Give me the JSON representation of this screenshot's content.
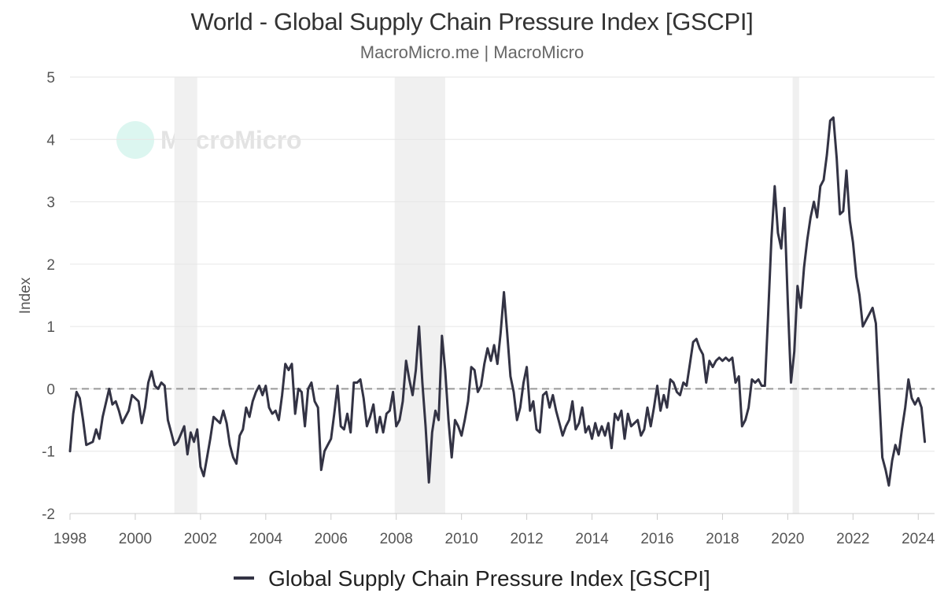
{
  "header": {
    "title": "World - Global Supply Chain Pressure Index [GSCPI]",
    "subtitle": "MacroMicro.me | MacroMicro"
  },
  "watermark": {
    "text": "MacroMicro"
  },
  "legend": {
    "label": "Global Supply Chain Pressure Index [GSCPI]"
  },
  "colors": {
    "line": "#333344",
    "grid": "#e6e6e6",
    "recession": "#f0f0f0",
    "zero_line": "#999999",
    "watermark": "#bfeee4"
  },
  "chart_data": {
    "type": "line",
    "title": "World - Global Supply Chain Pressure Index [GSCPI]",
    "ylabel": "Index",
    "xlabel": "",
    "xlim": [
      1998.0,
      2024.5
    ],
    "ylim": [
      -2,
      5
    ],
    "yticks": [
      -2,
      -1,
      0,
      1,
      2,
      3,
      4,
      5
    ],
    "xticks": [
      1998,
      2000,
      2002,
      2004,
      2006,
      2008,
      2010,
      2012,
      2014,
      2016,
      2018,
      2020,
      2022,
      2024
    ],
    "reference_line": {
      "y": 0,
      "style": "dashed"
    },
    "recession_bands": [
      [
        2001.2,
        2001.9
      ],
      [
        2007.95,
        2009.5
      ],
      [
        2020.15,
        2020.35
      ]
    ],
    "series": [
      {
        "name": "Global Supply Chain Pressure Index [GSCPI]",
        "points": [
          [
            1998.0,
            -1.0
          ],
          [
            1998.1,
            -0.4
          ],
          [
            1998.2,
            -0.05
          ],
          [
            1998.3,
            -0.15
          ],
          [
            1998.4,
            -0.5
          ],
          [
            1998.5,
            -0.9
          ],
          [
            1998.7,
            -0.85
          ],
          [
            1998.8,
            -0.65
          ],
          [
            1998.9,
            -0.8
          ],
          [
            1999.0,
            -0.45
          ],
          [
            1999.2,
            0.0
          ],
          [
            1999.3,
            -0.25
          ],
          [
            1999.4,
            -0.2
          ],
          [
            1999.5,
            -0.35
          ],
          [
            1999.6,
            -0.55
          ],
          [
            1999.8,
            -0.35
          ],
          [
            1999.9,
            -0.1
          ],
          [
            2000.1,
            -0.2
          ],
          [
            2000.2,
            -0.55
          ],
          [
            2000.3,
            -0.3
          ],
          [
            2000.4,
            0.1
          ],
          [
            2000.5,
            0.28
          ],
          [
            2000.6,
            0.05
          ],
          [
            2000.7,
            0.0
          ],
          [
            2000.8,
            0.1
          ],
          [
            2000.9,
            0.05
          ],
          [
            2001.0,
            -0.5
          ],
          [
            2001.1,
            -0.7
          ],
          [
            2001.2,
            -0.9
          ],
          [
            2001.3,
            -0.85
          ],
          [
            2001.5,
            -0.6
          ],
          [
            2001.6,
            -1.05
          ],
          [
            2001.7,
            -0.7
          ],
          [
            2001.8,
            -0.85
          ],
          [
            2001.9,
            -0.65
          ],
          [
            2002.0,
            -1.25
          ],
          [
            2002.1,
            -1.4
          ],
          [
            2002.2,
            -1.1
          ],
          [
            2002.3,
            -0.8
          ],
          [
            2002.4,
            -0.45
          ],
          [
            2002.5,
            -0.5
          ],
          [
            2002.6,
            -0.55
          ],
          [
            2002.7,
            -0.35
          ],
          [
            2002.8,
            -0.55
          ],
          [
            2002.9,
            -0.9
          ],
          [
            2003.0,
            -1.1
          ],
          [
            2003.1,
            -1.2
          ],
          [
            2003.2,
            -0.75
          ],
          [
            2003.3,
            -0.65
          ],
          [
            2003.4,
            -0.3
          ],
          [
            2003.5,
            -0.45
          ],
          [
            2003.6,
            -0.2
          ],
          [
            2003.7,
            -0.05
          ],
          [
            2003.8,
            0.05
          ],
          [
            2003.9,
            -0.1
          ],
          [
            2004.0,
            0.05
          ],
          [
            2004.1,
            -0.3
          ],
          [
            2004.2,
            -0.4
          ],
          [
            2004.3,
            -0.35
          ],
          [
            2004.4,
            -0.5
          ],
          [
            2004.5,
            -0.1
          ],
          [
            2004.6,
            0.4
          ],
          [
            2004.7,
            0.3
          ],
          [
            2004.8,
            0.4
          ],
          [
            2004.9,
            -0.4
          ],
          [
            2005.0,
            0.0
          ],
          [
            2005.1,
            -0.05
          ],
          [
            2005.2,
            -0.6
          ],
          [
            2005.3,
            0.0
          ],
          [
            2005.4,
            0.1
          ],
          [
            2005.5,
            -0.2
          ],
          [
            2005.6,
            -0.3
          ],
          [
            2005.7,
            -1.3
          ],
          [
            2005.8,
            -1.0
          ],
          [
            2005.9,
            -0.9
          ],
          [
            2006.0,
            -0.8
          ],
          [
            2006.1,
            -0.4
          ],
          [
            2006.2,
            0.05
          ],
          [
            2006.3,
            -0.6
          ],
          [
            2006.4,
            -0.65
          ],
          [
            2006.5,
            -0.4
          ],
          [
            2006.6,
            -0.7
          ],
          [
            2006.7,
            0.1
          ],
          [
            2006.8,
            0.1
          ],
          [
            2006.9,
            0.15
          ],
          [
            2007.0,
            -0.15
          ],
          [
            2007.1,
            -0.6
          ],
          [
            2007.2,
            -0.45
          ],
          [
            2007.3,
            -0.25
          ],
          [
            2007.4,
            -0.7
          ],
          [
            2007.5,
            -0.45
          ],
          [
            2007.6,
            -0.7
          ],
          [
            2007.7,
            -0.4
          ],
          [
            2007.8,
            -0.35
          ],
          [
            2007.9,
            -0.05
          ],
          [
            2008.0,
            -0.6
          ],
          [
            2008.1,
            -0.5
          ],
          [
            2008.2,
            -0.2
          ],
          [
            2008.3,
            0.45
          ],
          [
            2008.4,
            0.15
          ],
          [
            2008.5,
            -0.1
          ],
          [
            2008.6,
            0.3
          ],
          [
            2008.7,
            1.0
          ],
          [
            2008.8,
            0.1
          ],
          [
            2008.9,
            -0.6
          ],
          [
            2009.0,
            -1.5
          ],
          [
            2009.1,
            -0.7
          ],
          [
            2009.2,
            -0.35
          ],
          [
            2009.3,
            -0.5
          ],
          [
            2009.4,
            0.85
          ],
          [
            2009.5,
            0.3
          ],
          [
            2009.6,
            -0.5
          ],
          [
            2009.7,
            -1.1
          ],
          [
            2009.8,
            -0.5
          ],
          [
            2009.9,
            -0.6
          ],
          [
            2010.0,
            -0.75
          ],
          [
            2010.1,
            -0.5
          ],
          [
            2010.2,
            -0.2
          ],
          [
            2010.3,
            0.35
          ],
          [
            2010.4,
            0.3
          ],
          [
            2010.5,
            -0.05
          ],
          [
            2010.6,
            0.05
          ],
          [
            2010.7,
            0.4
          ],
          [
            2010.8,
            0.65
          ],
          [
            2010.9,
            0.45
          ],
          [
            2011.0,
            0.7
          ],
          [
            2011.1,
            0.4
          ],
          [
            2011.2,
            0.9
          ],
          [
            2011.3,
            1.55
          ],
          [
            2011.4,
            0.9
          ],
          [
            2011.5,
            0.2
          ],
          [
            2011.6,
            -0.05
          ],
          [
            2011.7,
            -0.5
          ],
          [
            2011.8,
            -0.3
          ],
          [
            2011.9,
            0.1
          ],
          [
            2012.0,
            0.35
          ],
          [
            2012.1,
            -0.35
          ],
          [
            2012.2,
            -0.2
          ],
          [
            2012.3,
            -0.65
          ],
          [
            2012.4,
            -0.7
          ],
          [
            2012.5,
            -0.1
          ],
          [
            2012.6,
            -0.05
          ],
          [
            2012.7,
            -0.3
          ],
          [
            2012.8,
            -0.1
          ],
          [
            2012.9,
            -0.35
          ],
          [
            2013.0,
            -0.55
          ],
          [
            2013.1,
            -0.75
          ],
          [
            2013.2,
            -0.6
          ],
          [
            2013.3,
            -0.5
          ],
          [
            2013.4,
            -0.2
          ],
          [
            2013.5,
            -0.65
          ],
          [
            2013.6,
            -0.55
          ],
          [
            2013.7,
            -0.3
          ],
          [
            2013.8,
            -0.7
          ],
          [
            2013.9,
            -0.6
          ],
          [
            2014.0,
            -0.8
          ],
          [
            2014.1,
            -0.55
          ],
          [
            2014.2,
            -0.75
          ],
          [
            2014.3,
            -0.6
          ],
          [
            2014.4,
            -0.75
          ],
          [
            2014.5,
            -0.55
          ],
          [
            2014.6,
            -0.95
          ],
          [
            2014.7,
            -0.4
          ],
          [
            2014.8,
            -0.5
          ],
          [
            2014.9,
            -0.35
          ],
          [
            2015.0,
            -0.8
          ],
          [
            2015.1,
            -0.4
          ],
          [
            2015.2,
            -0.6
          ],
          [
            2015.3,
            -0.55
          ],
          [
            2015.4,
            -0.5
          ],
          [
            2015.5,
            -0.75
          ],
          [
            2015.6,
            -0.65
          ],
          [
            2015.7,
            -0.3
          ],
          [
            2015.8,
            -0.6
          ],
          [
            2015.9,
            -0.3
          ],
          [
            2016.0,
            0.05
          ],
          [
            2016.1,
            -0.35
          ],
          [
            2016.2,
            -0.1
          ],
          [
            2016.3,
            -0.3
          ],
          [
            2016.4,
            0.15
          ],
          [
            2016.5,
            0.1
          ],
          [
            2016.6,
            -0.05
          ],
          [
            2016.7,
            -0.1
          ],
          [
            2016.8,
            0.1
          ],
          [
            2016.9,
            0.05
          ],
          [
            2017.0,
            0.4
          ],
          [
            2017.1,
            0.75
          ],
          [
            2017.2,
            0.8
          ],
          [
            2017.3,
            0.65
          ],
          [
            2017.4,
            0.55
          ],
          [
            2017.5,
            0.1
          ],
          [
            2017.6,
            0.45
          ],
          [
            2017.7,
            0.35
          ],
          [
            2017.8,
            0.45
          ],
          [
            2017.9,
            0.5
          ],
          [
            2018.0,
            0.45
          ],
          [
            2018.1,
            0.5
          ],
          [
            2018.2,
            0.45
          ],
          [
            2018.3,
            0.5
          ],
          [
            2018.4,
            0.1
          ],
          [
            2018.5,
            0.2
          ],
          [
            2018.6,
            -0.6
          ],
          [
            2018.7,
            -0.5
          ],
          [
            2018.8,
            -0.3
          ],
          [
            2018.9,
            0.15
          ],
          [
            2019.0,
            0.1
          ],
          [
            2019.1,
            0.15
          ],
          [
            2019.2,
            0.05
          ],
          [
            2019.3,
            0.05
          ],
          [
            2019.4,
            1.2
          ],
          [
            2019.5,
            2.4
          ],
          [
            2019.6,
            3.25
          ],
          [
            2019.7,
            2.5
          ],
          [
            2019.8,
            2.25
          ],
          [
            2019.9,
            2.9
          ],
          [
            2020.0,
            1.4
          ],
          [
            2020.1,
            0.1
          ],
          [
            2020.2,
            0.6
          ],
          [
            2020.3,
            1.65
          ],
          [
            2020.4,
            1.3
          ],
          [
            2020.5,
            1.95
          ],
          [
            2020.6,
            2.4
          ],
          [
            2020.7,
            2.75
          ],
          [
            2020.8,
            3.0
          ],
          [
            2020.9,
            2.75
          ],
          [
            2021.0,
            3.25
          ],
          [
            2021.1,
            3.35
          ],
          [
            2021.2,
            3.75
          ],
          [
            2021.3,
            4.3
          ],
          [
            2021.4,
            4.35
          ],
          [
            2021.5,
            3.7
          ],
          [
            2021.6,
            2.8
          ],
          [
            2021.7,
            2.85
          ],
          [
            2021.8,
            3.5
          ],
          [
            2021.9,
            2.7
          ],
          [
            2022.0,
            2.35
          ],
          [
            2022.1,
            1.8
          ],
          [
            2022.2,
            1.5
          ],
          [
            2022.3,
            1.0
          ],
          [
            2022.4,
            1.1
          ],
          [
            2022.5,
            1.2
          ],
          [
            2022.6,
            1.3
          ],
          [
            2022.7,
            1.05
          ],
          [
            2022.8,
            -0.05
          ],
          [
            2022.9,
            -1.1
          ],
          [
            2023.0,
            -1.3
          ],
          [
            2023.1,
            -1.55
          ],
          [
            2023.2,
            -1.15
          ],
          [
            2023.3,
            -0.9
          ],
          [
            2023.4,
            -1.05
          ],
          [
            2023.5,
            -0.65
          ],
          [
            2023.6,
            -0.3
          ],
          [
            2023.7,
            0.15
          ],
          [
            2023.8,
            -0.15
          ],
          [
            2023.9,
            -0.25
          ],
          [
            2024.0,
            -0.15
          ],
          [
            2024.1,
            -0.3
          ],
          [
            2024.2,
            -0.85
          ]
        ]
      }
    ]
  }
}
